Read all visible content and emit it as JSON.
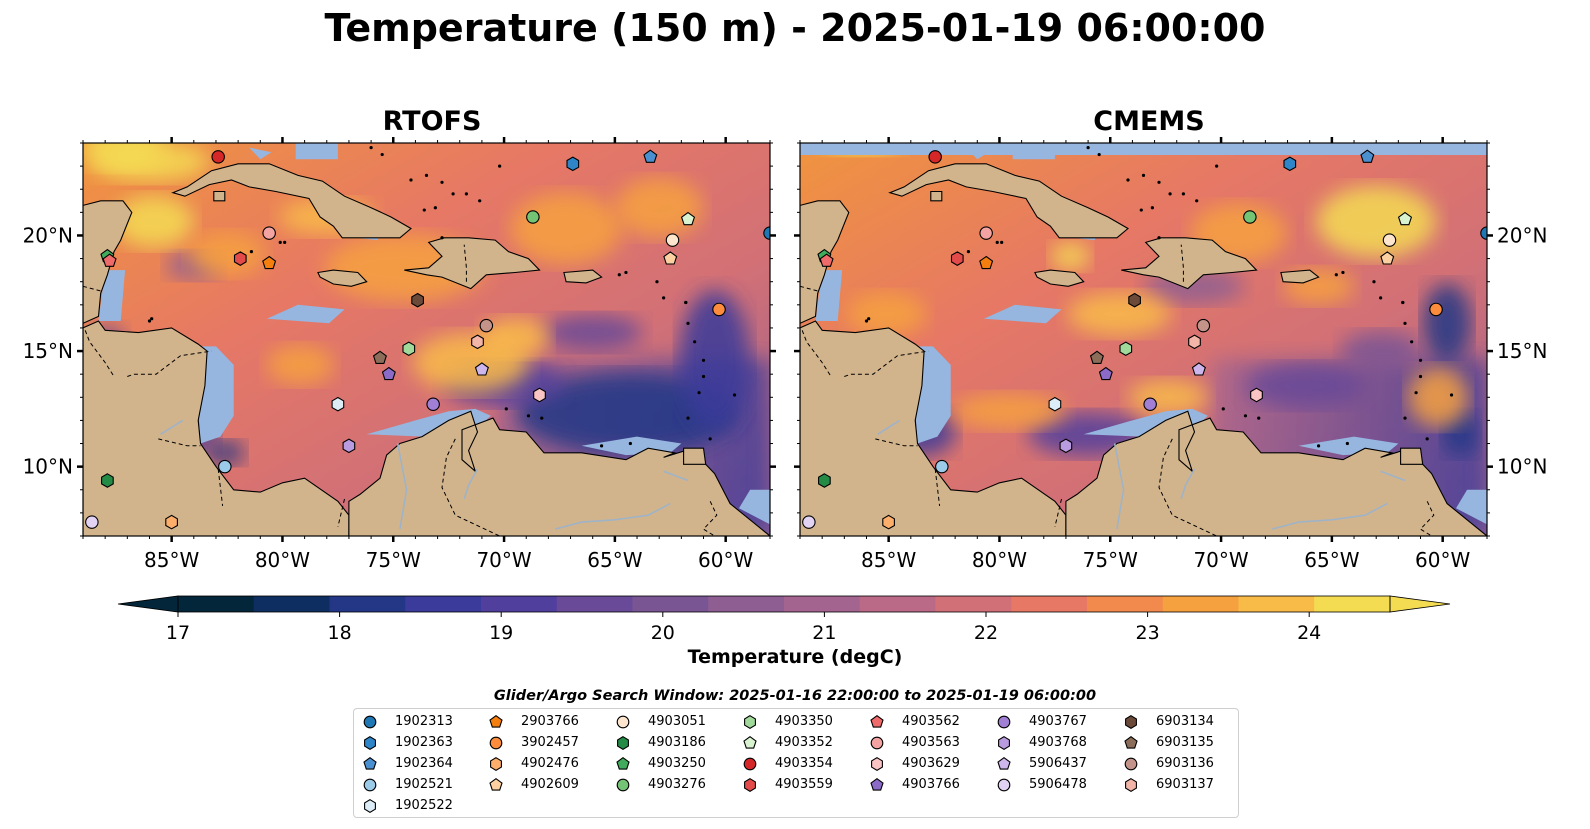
{
  "title": "Temperature (150 m) - 2025-01-19 06:00:00",
  "panels": [
    {
      "title": "RTOFS"
    },
    {
      "title": "CMEMS"
    }
  ],
  "map": {
    "lon_range": [
      -89,
      -58
    ],
    "lat_range": [
      7,
      24
    ],
    "lon_ticks": [
      -85,
      -80,
      -75,
      -70,
      -65,
      -60
    ],
    "lat_ticks": [
      10,
      15,
      20
    ],
    "lon_tick_labels": [
      "85°W",
      "80°W",
      "75°W",
      "70°W",
      "65°W",
      "60°W"
    ],
    "lat_tick_labels": [
      "10°N",
      "15°N",
      "20°N"
    ]
  },
  "colorbar": {
    "label": "Temperature (degC)",
    "range": [
      17,
      24.5
    ],
    "extend": "both",
    "ticks": [
      "17",
      "18",
      "19",
      "20",
      "21",
      "22",
      "23",
      "24"
    ],
    "colors": [
      "#03263a",
      "#0e2e62",
      "#233786",
      "#3a3b9a",
      "#513f9e",
      "#684a98",
      "#7a5594",
      "#8e5e93",
      "#a46490",
      "#ba6a86",
      "#d17077",
      "#e67865",
      "#f18a4c",
      "#f6a13f",
      "#f9bb48",
      "#f4dc52"
    ]
  },
  "legend": {
    "title": "Glider/Argo Search Window: 2025-01-16 22:00:00 to 2025-01-19 06:00:00",
    "items": [
      {
        "id": "1902313",
        "marker": "circle",
        "color": "#1f77b4",
        "lon": -58.0,
        "lat": 20.1
      },
      {
        "id": "1902363",
        "marker": "hexagon",
        "color": "#2e86c9",
        "lon": -66.9,
        "lat": 23.1
      },
      {
        "id": "1902364",
        "marker": "pentagon",
        "color": "#4a90d0",
        "lon": -63.4,
        "lat": 23.4
      },
      {
        "id": "1902521",
        "marker": "circle",
        "color": "#9ccbea",
        "lon": -82.6,
        "lat": 10.0
      },
      {
        "id": "1902522",
        "marker": "hexagon",
        "color": "#dcedf8",
        "lon": -77.5,
        "lat": 12.7
      },
      {
        "id": "2903766",
        "marker": "pentagon",
        "color": "#f57f0e",
        "lon": -80.6,
        "lat": 18.8
      },
      {
        "id": "3902457",
        "marker": "circle",
        "color": "#fd8d3c",
        "lon": -60.3,
        "lat": 16.8
      },
      {
        "id": "4902476",
        "marker": "hexagon",
        "color": "#fdae6b",
        "lon": -85.0,
        "lat": 7.6
      },
      {
        "id": "4902609",
        "marker": "pentagon",
        "color": "#fdd0a2",
        "lon": -62.5,
        "lat": 19.0
      },
      {
        "id": "4903051",
        "marker": "circle",
        "color": "#fee6ce",
        "lon": -62.4,
        "lat": 19.8
      },
      {
        "id": "4903186",
        "marker": "hexagon",
        "color": "#238b45",
        "lon": -87.9,
        "lat": 9.4
      },
      {
        "id": "4903250",
        "marker": "pentagon",
        "color": "#41ab5d",
        "lon": -87.9,
        "lat": 19.1
      },
      {
        "id": "4903276",
        "marker": "circle",
        "color": "#74c476",
        "lon": -68.7,
        "lat": 20.8
      },
      {
        "id": "4903350",
        "marker": "hexagon",
        "color": "#a1d99b",
        "lon": -74.3,
        "lat": 15.1
      },
      {
        "id": "4903352",
        "marker": "pentagon",
        "color": "#d9f2d0",
        "lon": -61.7,
        "lat": 20.7
      },
      {
        "id": "4903354",
        "marker": "circle",
        "color": "#d62728",
        "lon": -82.9,
        "lat": 23.4
      },
      {
        "id": "4903559",
        "marker": "hexagon",
        "color": "#e34a4a",
        "lon": -81.9,
        "lat": 19.0
      },
      {
        "id": "4903562",
        "marker": "pentagon",
        "color": "#ef6a6a",
        "lon": -87.8,
        "lat": 18.9
      },
      {
        "id": "4903563",
        "marker": "circle",
        "color": "#f4a3a3",
        "lon": -80.6,
        "lat": 20.1
      },
      {
        "id": "4903629",
        "marker": "hexagon",
        "color": "#fbc4c4",
        "lon": -68.4,
        "lat": 13.1
      },
      {
        "id": "4903766",
        "marker": "pentagon",
        "color": "#8c6bc8",
        "lon": -75.2,
        "lat": 14.0
      },
      {
        "id": "4903767",
        "marker": "circle",
        "color": "#a17fd4",
        "lon": -73.2,
        "lat": 12.7
      },
      {
        "id": "4903768",
        "marker": "hexagon",
        "color": "#b99be0",
        "lon": -77.0,
        "lat": 10.9
      },
      {
        "id": "5906437",
        "marker": "pentagon",
        "color": "#cdb6ec",
        "lon": -71.0,
        "lat": 14.2
      },
      {
        "id": "5906478",
        "marker": "circle",
        "color": "#e2d3f5",
        "lon": -88.6,
        "lat": 7.6
      },
      {
        "id": "6903134",
        "marker": "hexagon",
        "color": "#6b4a3a",
        "lon": -73.9,
        "lat": 17.2
      },
      {
        "id": "6903135",
        "marker": "pentagon",
        "color": "#8c6d5a",
        "lon": -75.6,
        "lat": 14.7
      },
      {
        "id": "6903136",
        "marker": "circle",
        "color": "#c4948a",
        "lon": -70.8,
        "lat": 16.1
      },
      {
        "id": "6903137",
        "marker": "hexagon",
        "color": "#f2b5a8",
        "lon": -71.2,
        "lat": 15.4
      }
    ]
  }
}
